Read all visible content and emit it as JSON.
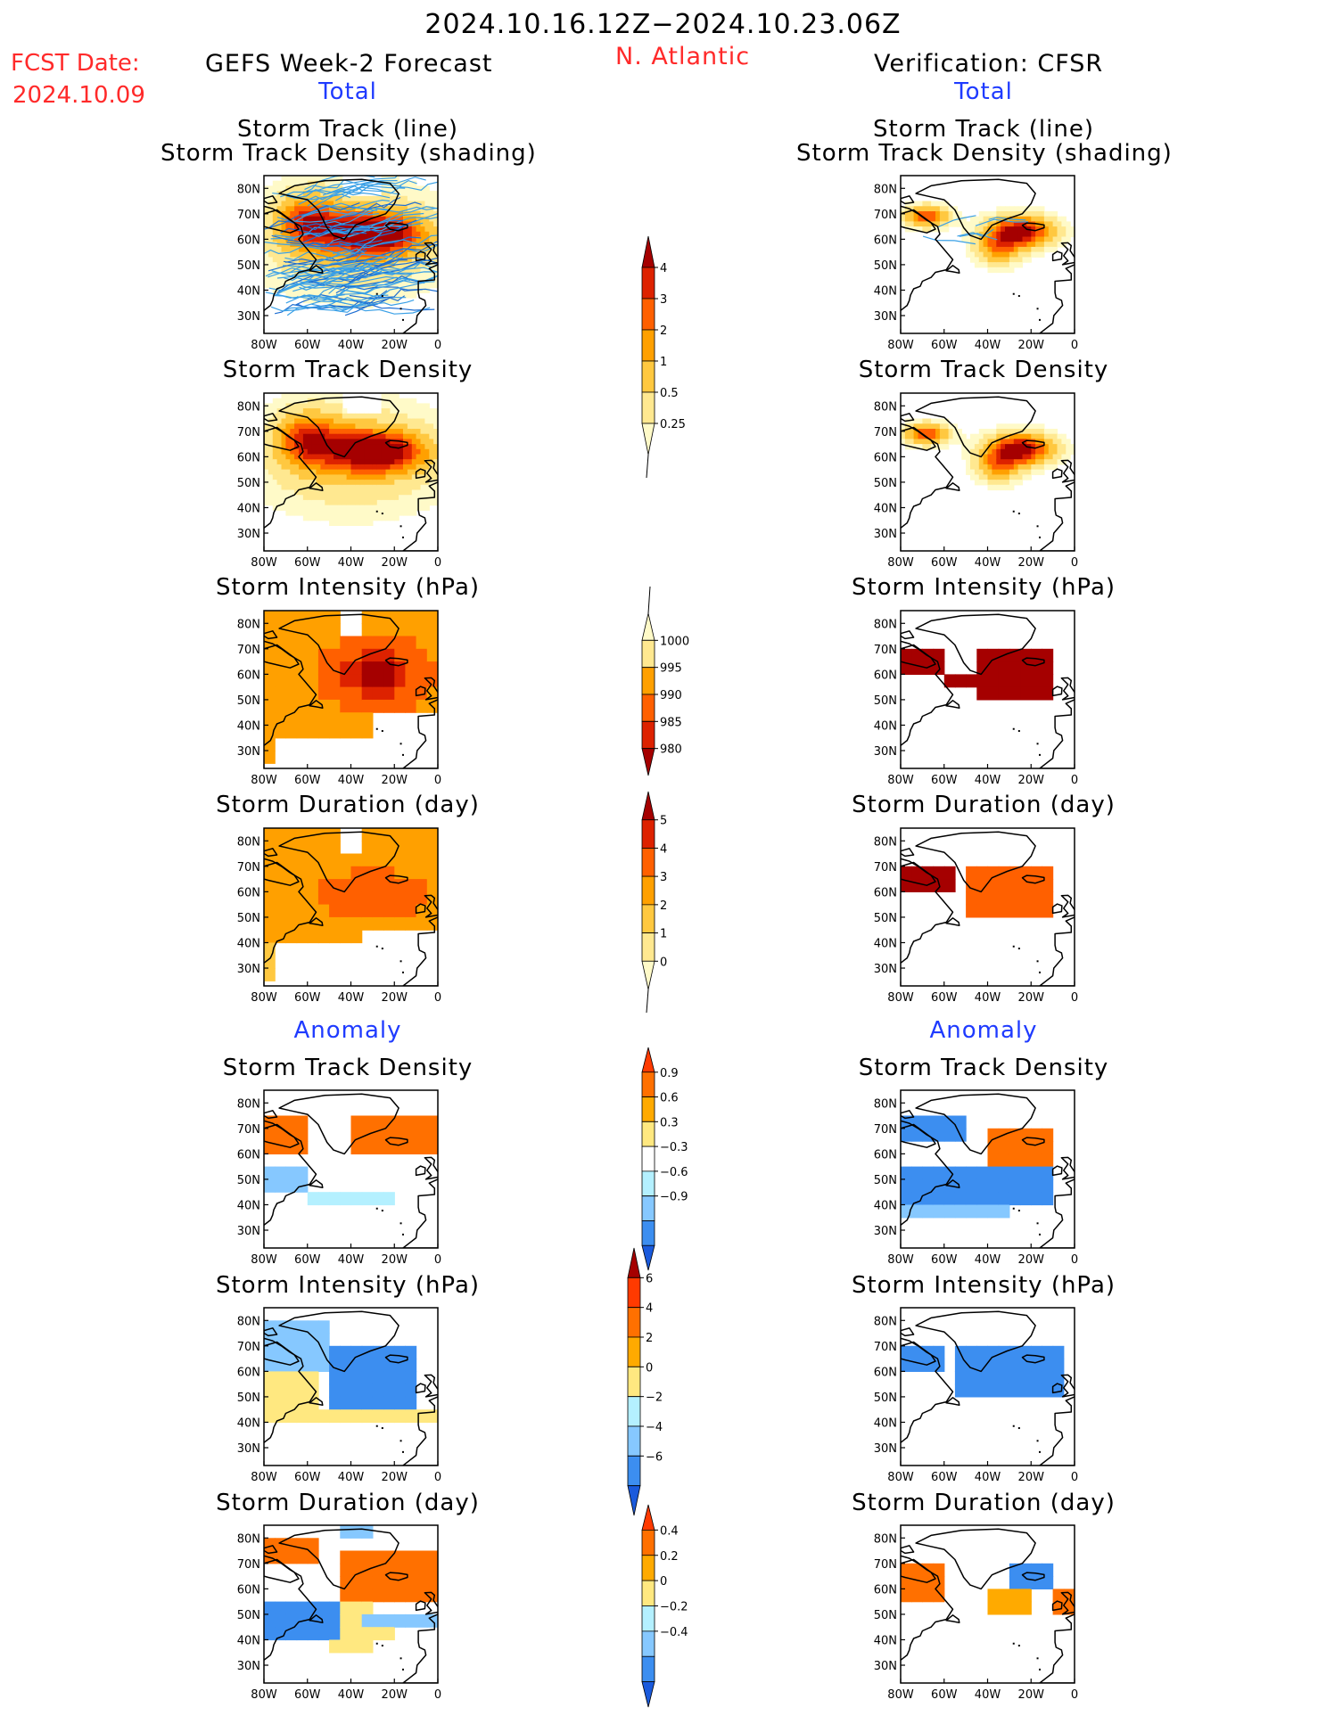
{
  "header": {
    "period": "2024.10.16.12Z−2024.10.23.06Z",
    "fcst_label": "FCST Date:",
    "fcst_date": "2024.10.09",
    "model": "GEFS Week-2 Forecast",
    "region": "N. Atlantic",
    "verification": "Verification: CFSR"
  },
  "sections": {
    "total": "Total",
    "anomaly": "Anomaly"
  },
  "panel_titles": {
    "track_line": "Storm Track (line)",
    "track_shading": "Storm Track Density (shading)",
    "density": "Storm Track Density",
    "intensity": "Storm Intensity (hPa)",
    "duration": "Storm Duration (day)"
  },
  "map_axes": {
    "lat_labels": [
      "80N",
      "70N",
      "60N",
      "50N",
      "40N",
      "30N"
    ],
    "lon_labels": [
      "80W",
      "60W",
      "40W",
      "20W",
      "0"
    ]
  },
  "colorbars": [
    {
      "id": "density",
      "labels": [
        "4",
        "3",
        "2",
        "1",
        "0.5",
        "0.25"
      ],
      "colors": [
        "#a50000",
        "#dd2200",
        "#ff6000",
        "#ffa000",
        "#ffc840",
        "#ffe890",
        "#fffac8"
      ]
    },
    {
      "id": "intensity",
      "labels": [
        "1000",
        "995",
        "990",
        "985",
        "980"
      ],
      "colors": [
        "#fffac8",
        "#ffe890",
        "#ffa000",
        "#ff6000",
        "#dd2200",
        "#a50000"
      ]
    },
    {
      "id": "duration",
      "labels": [
        "5",
        "4",
        "3",
        "2",
        "1",
        "0"
      ],
      "colors": [
        "#a50000",
        "#dd2200",
        "#ff6000",
        "#ffa000",
        "#ffc840",
        "#ffe890",
        "#fffac8"
      ]
    },
    {
      "id": "density-anom",
      "labels": [
        "0.9",
        "0.6",
        "0.3",
        "−0.3",
        "−0.6",
        "−0.9"
      ],
      "colors": [
        "#ff3a00",
        "#ff7000",
        "#ffaa00",
        "#ffe880",
        "#ffffff",
        "#b4f0ff",
        "#86c8ff",
        "#3c8ef0",
        "#1a5adc"
      ]
    },
    {
      "id": "intensity-anom",
      "labels": [
        "6",
        "4",
        "2",
        "0",
        "−2",
        "−4",
        "−6"
      ],
      "colors": [
        "#a50000",
        "#ff3a00",
        "#ff7000",
        "#ffaa00",
        "#ffe880",
        "#b4f0ff",
        "#86c8ff",
        "#3c8ef0",
        "#1a5adc"
      ]
    },
    {
      "id": "duration-anom",
      "labels": [
        "0.4",
        "0.2",
        "0",
        "−0.2",
        "−0.4"
      ],
      "colors": [
        "#ff3a00",
        "#ff7000",
        "#ffaa00",
        "#ffe880",
        "#b4f0ff",
        "#86c8ff",
        "#3c8ef0",
        "#1a5adc"
      ]
    }
  ]
}
